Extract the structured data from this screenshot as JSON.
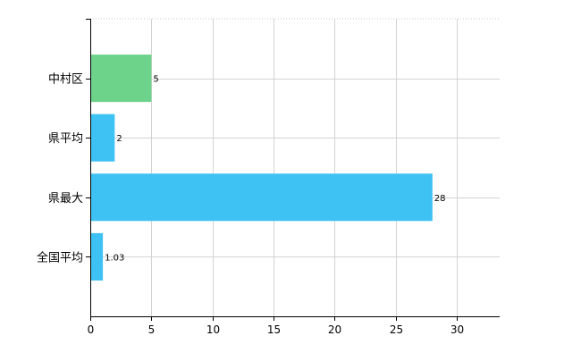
{
  "chart_data": {
    "type": "bar",
    "orientation": "horizontal",
    "categories": [
      "中村区",
      "県平均",
      "県最大",
      "全国平均"
    ],
    "values": [
      5,
      2,
      28,
      1.03
    ],
    "value_labels": [
      "5",
      "2",
      "28",
      "1.03"
    ],
    "bar_colors": [
      "#6dd38a",
      "#3ec1f3",
      "#3ec1f3",
      "#3ec1f3"
    ],
    "xlim": [
      0,
      33.5
    ],
    "xticks": [
      0,
      5,
      10,
      15,
      20,
      25,
      30
    ],
    "xtick_labels": [
      "0",
      "5",
      "10",
      "15",
      "20",
      "25",
      "30"
    ],
    "grid": true,
    "legend": "none",
    "title": "",
    "xlabel": "",
    "ylabel": ""
  }
}
